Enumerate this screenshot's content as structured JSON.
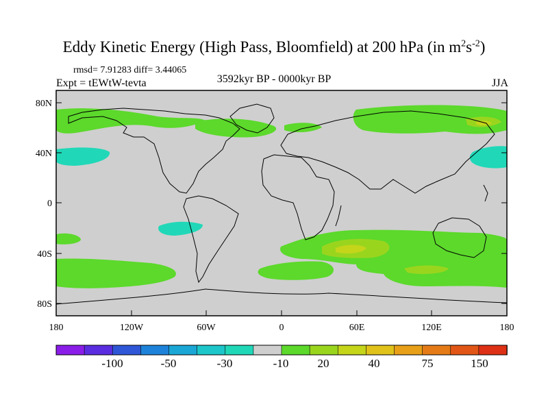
{
  "title": {
    "main": "Eddy Kinetic Energy (High Pass, Bloomfield) at 200 hPa (in m",
    "sup1": "2",
    "mid": "s",
    "sup2": "-2",
    "end": ")"
  },
  "stats": "rmsd= 7.91283 diff= 3.44065",
  "experiment": "Expt = tEWtW-tevta",
  "period": "3592kyr BP - 0000kyr BP",
  "season": "JJA",
  "axes": {
    "y_ticks": [
      "80N",
      "40N",
      "0",
      "40S",
      "80S"
    ],
    "x_ticks": [
      "180",
      "120W",
      "60W",
      "0",
      "60E",
      "120E",
      "180"
    ]
  },
  "colorbar": {
    "colors": [
      "#8a1ee8",
      "#5a2ee0",
      "#2f56d6",
      "#1d82d9",
      "#1ba7d6",
      "#1dc6c9",
      "#20d8b8",
      "#cfcfcf",
      "#5cd92b",
      "#9ad51e",
      "#c4d51a",
      "#e0c21a",
      "#e8a019",
      "#e57b17",
      "#e15616",
      "#dd3015"
    ],
    "labels": [
      "-100",
      "-50",
      "-30",
      "-10",
      "20",
      "40",
      "75",
      "150"
    ]
  }
}
